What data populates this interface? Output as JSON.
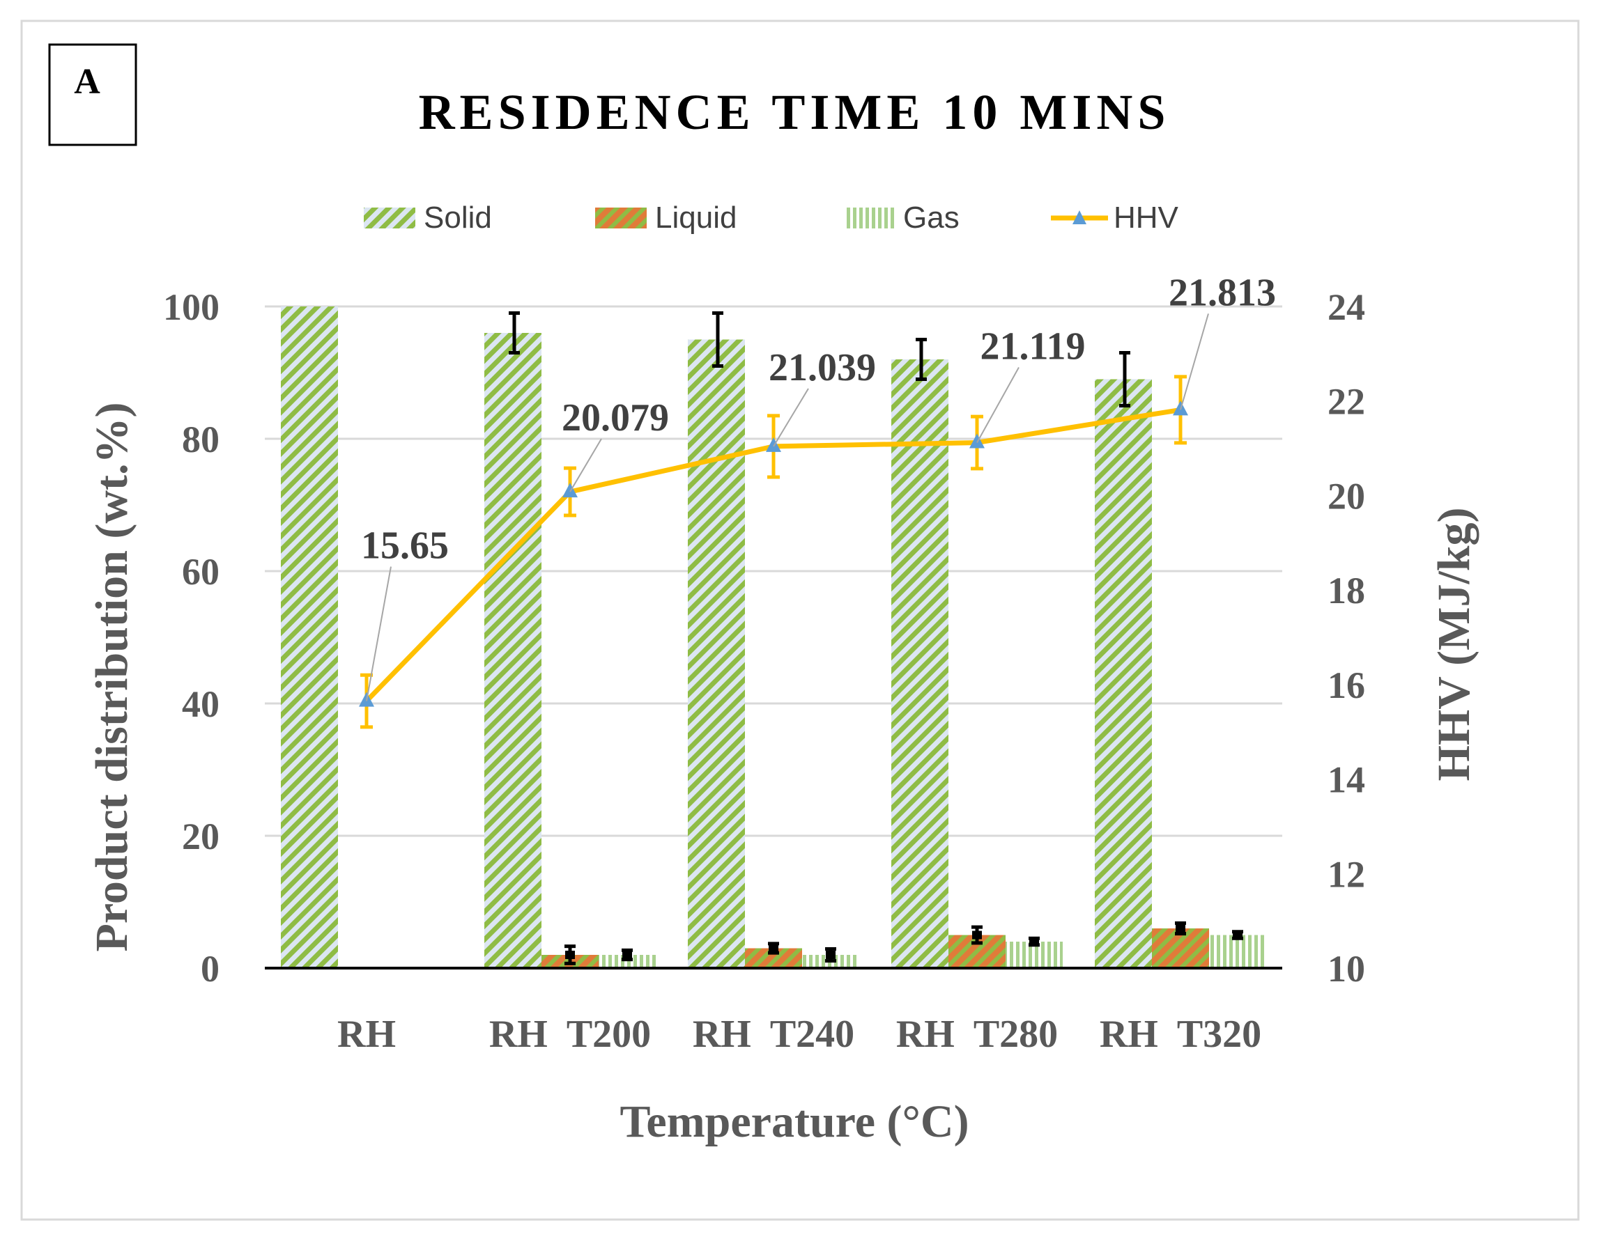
{
  "panel_label": "A",
  "chart_data": {
    "type": "bar",
    "title": "RESIDENCE TIME 10 MINS",
    "xlabel": "Temperature (°C)",
    "ylabel": "Product distribution (wt.%)",
    "y2label": "HHV (MJ/kg)",
    "categories": [
      "RH",
      "RH  T200",
      "RH  T240",
      "RH  T280",
      "RH  T320"
    ],
    "ylim": [
      0,
      100
    ],
    "yticks": [
      0,
      20,
      40,
      60,
      80,
      100
    ],
    "y2lim": [
      10,
      24
    ],
    "y2ticks": [
      10,
      12,
      14,
      16,
      18,
      20,
      22,
      24
    ],
    "grid": true,
    "legend_position": "top",
    "series": [
      {
        "name": "Solid",
        "kind": "bar",
        "values": [
          100,
          96,
          95,
          92,
          89
        ],
        "errors": [
          0,
          3,
          4,
          3,
          4
        ],
        "color": "#8fbc45",
        "pattern": "diagonal-stripes",
        "background": "#dce6f2"
      },
      {
        "name": "Liquid",
        "kind": "bar",
        "values": [
          0,
          2,
          3,
          5,
          6
        ],
        "errors": [
          0,
          1.3,
          0.7,
          1.2,
          0.8
        ],
        "color": "#e07b39",
        "pattern": "diagonal-stripes",
        "background": "#8fbc45"
      },
      {
        "name": "Gas",
        "kind": "bar",
        "values": [
          0,
          2,
          2,
          4,
          5
        ],
        "errors": [
          0,
          0.7,
          0.9,
          0.5,
          0.5
        ],
        "color": "#a9d18e",
        "pattern": "vertical-stripes",
        "background": "#ffffff"
      },
      {
        "name": "HHV",
        "kind": "line",
        "axis": "y2",
        "values": [
          15.65,
          20.079,
          21.039,
          21.119,
          21.813
        ],
        "errors": [
          0.55,
          0.5,
          0.65,
          0.55,
          0.7
        ],
        "labels": [
          "15.65",
          "20.079",
          "21.039",
          "21.119",
          "21.813"
        ],
        "color": "#ffc000",
        "marker_color": "#5b9bd5"
      }
    ]
  }
}
